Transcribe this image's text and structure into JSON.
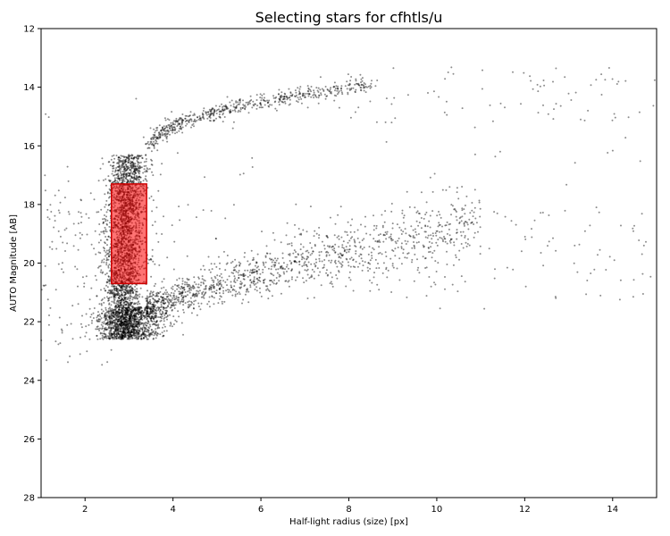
{
  "chart_data": {
    "type": "scatter",
    "title": "Selecting stars for cfhtls/u",
    "xlabel": "Half-light radius (size) [px]",
    "ylabel": "AUTO Magnitude [AB]",
    "xlim": [
      1,
      15
    ],
    "ylim": [
      28,
      12
    ],
    "y_inverted": true,
    "x_ticks": [
      2,
      4,
      6,
      8,
      10,
      12,
      14
    ],
    "y_ticks": [
      12,
      14,
      16,
      18,
      20,
      22,
      24,
      26,
      28
    ],
    "grid": false,
    "point_color": "#000000",
    "selection_box": {
      "x_range": [
        2.6,
        3.4
      ],
      "y_range": [
        17.3,
        20.7
      ],
      "color": "#ff0000"
    },
    "point_groups": [
      {
        "name": "stellar locus",
        "x_range": [
          2.4,
          3.6
        ],
        "y_range": [
          16.3,
          22.6
        ],
        "count": 2600
      },
      {
        "name": "bright upper branch",
        "x_start": 3.5,
        "x_end": 8.5,
        "y_start": 16.0,
        "y_end": 13.9,
        "count": 600
      },
      {
        "name": "faint galaxy branch",
        "x_start": 3.4,
        "x_end": 11.0,
        "y_start": 21.5,
        "y_end": 18.5,
        "count": 1200
      },
      {
        "name": "faint core cluster",
        "x_range": [
          2.5,
          3.8
        ],
        "y_range": [
          21.5,
          22.6
        ],
        "count": 900
      },
      {
        "name": "scattered",
        "x_range": [
          1,
          15
        ],
        "y_range": [
          13,
          24.5
        ],
        "count": 450
      }
    ]
  }
}
